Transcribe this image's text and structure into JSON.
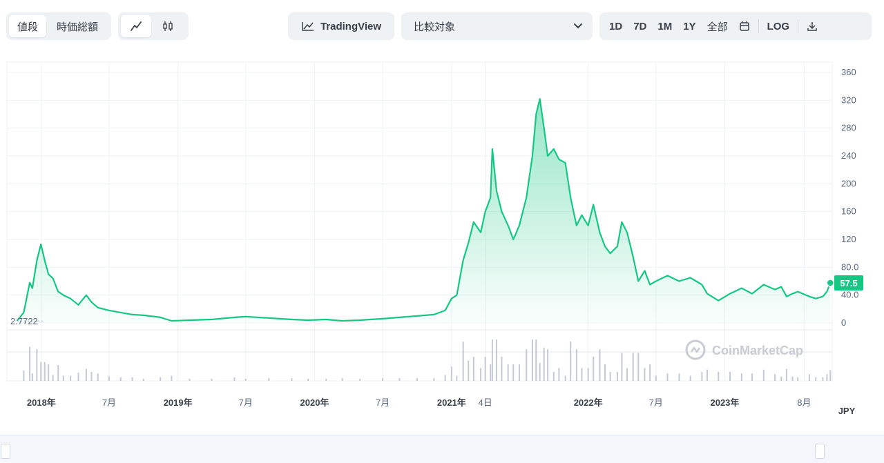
{
  "toolbar": {
    "view_tabs": [
      "値段",
      "時価総額"
    ],
    "chart_mode_icons": [
      "line-chart-icon",
      "candlestick-icon"
    ],
    "tradingview_label": "TradingView",
    "compare_placeholder": "比較対象",
    "timeframes": [
      "1D",
      "7D",
      "1M",
      "1Y",
      "全部"
    ],
    "log_label": "LOG"
  },
  "colors": {
    "line": "#16c784",
    "fill_top": "#c5efdb",
    "grid": "#eff2f5",
    "badge_bg": "#16c784"
  },
  "watermark": "CoinMarketCap",
  "currency": "JPY",
  "current_price_badge": "57.5",
  "start_price_label": "2.7722",
  "chart_data": {
    "type": "area",
    "y_ticks": [
      0,
      40,
      80,
      120,
      160,
      200,
      240,
      280,
      320,
      360
    ],
    "y_tick_labels": [
      "0",
      "40.0",
      "80.0",
      "120",
      "160",
      "200",
      "240",
      "280",
      "320",
      "360"
    ],
    "ylim": [
      0,
      360
    ],
    "xlim": [
      "2017-10-01",
      "2023-10-15"
    ],
    "x_ticks": [
      {
        "date": "2018-01-01",
        "label": "2018年",
        "major": true
      },
      {
        "date": "2018-07-01",
        "label": "7月",
        "major": false
      },
      {
        "date": "2019-01-01",
        "label": "2019年",
        "major": true
      },
      {
        "date": "2019-07-01",
        "label": "7月",
        "major": false
      },
      {
        "date": "2020-01-01",
        "label": "2020年",
        "major": true
      },
      {
        "date": "2020-07-01",
        "label": "7月",
        "major": false
      },
      {
        "date": "2021-01-01",
        "label": "2021年",
        "major": true
      },
      {
        "date": "2021-04-01",
        "label": "4日",
        "major": false
      },
      {
        "date": "2022-01-01",
        "label": "2022年",
        "major": true
      },
      {
        "date": "2022-07-01",
        "label": "7月",
        "major": false
      },
      {
        "date": "2023-01-01",
        "label": "2023年",
        "major": true
      },
      {
        "date": "2023-08-01",
        "label": "8月",
        "major": false
      }
    ],
    "series": [
      {
        "points": [
          [
            "2017-10-28",
            3
          ],
          [
            "2017-11-15",
            15
          ],
          [
            "2017-12-01",
            58
          ],
          [
            "2017-12-08",
            50
          ],
          [
            "2017-12-20",
            90
          ],
          [
            "2017-12-31",
            113
          ],
          [
            "2018-01-10",
            90
          ],
          [
            "2018-01-20",
            70
          ],
          [
            "2018-02-01",
            64
          ],
          [
            "2018-02-15",
            45
          ],
          [
            "2018-03-01",
            40
          ],
          [
            "2018-03-20",
            35
          ],
          [
            "2018-04-10",
            26
          ],
          [
            "2018-05-01",
            40
          ],
          [
            "2018-05-15",
            30
          ],
          [
            "2018-06-01",
            22
          ],
          [
            "2018-07-01",
            18
          ],
          [
            "2018-08-01",
            15
          ],
          [
            "2018-09-01",
            12
          ],
          [
            "2018-10-01",
            11
          ],
          [
            "2018-11-15",
            8
          ],
          [
            "2018-12-15",
            3
          ],
          [
            "2019-02-01",
            4
          ],
          [
            "2019-04-01",
            5
          ],
          [
            "2019-06-01",
            8
          ],
          [
            "2019-07-01",
            9
          ],
          [
            "2019-09-01",
            7
          ],
          [
            "2019-11-01",
            5
          ],
          [
            "2019-12-15",
            4
          ],
          [
            "2020-02-01",
            5
          ],
          [
            "2020-03-15",
            3
          ],
          [
            "2020-05-01",
            4
          ],
          [
            "2020-07-01",
            6
          ],
          [
            "2020-08-15",
            8
          ],
          [
            "2020-10-01",
            10
          ],
          [
            "2020-11-15",
            12
          ],
          [
            "2020-12-15",
            18
          ],
          [
            "2021-01-01",
            35
          ],
          [
            "2021-01-15",
            40
          ],
          [
            "2021-02-01",
            90
          ],
          [
            "2021-02-15",
            115
          ],
          [
            "2021-03-01",
            145
          ],
          [
            "2021-03-20",
            130
          ],
          [
            "2021-04-01",
            160
          ],
          [
            "2021-04-15",
            180
          ],
          [
            "2021-04-20",
            250
          ],
          [
            "2021-05-01",
            190
          ],
          [
            "2021-05-15",
            160
          ],
          [
            "2021-06-01",
            140
          ],
          [
            "2021-06-15",
            120
          ],
          [
            "2021-07-01",
            140
          ],
          [
            "2021-07-20",
            180
          ],
          [
            "2021-08-05",
            240
          ],
          [
            "2021-08-15",
            300
          ],
          [
            "2021-08-25",
            322
          ],
          [
            "2021-09-05",
            280
          ],
          [
            "2021-09-15",
            240
          ],
          [
            "2021-10-01",
            250
          ],
          [
            "2021-10-15",
            235
          ],
          [
            "2021-11-01",
            230
          ],
          [
            "2021-11-15",
            180
          ],
          [
            "2021-12-01",
            140
          ],
          [
            "2021-12-15",
            155
          ],
          [
            "2022-01-01",
            140
          ],
          [
            "2022-01-15",
            170
          ],
          [
            "2022-02-01",
            130
          ],
          [
            "2022-02-15",
            110
          ],
          [
            "2022-03-01",
            100
          ],
          [
            "2022-03-20",
            110
          ],
          [
            "2022-04-01",
            145
          ],
          [
            "2022-04-15",
            130
          ],
          [
            "2022-05-01",
            95
          ],
          [
            "2022-05-15",
            60
          ],
          [
            "2022-06-01",
            75
          ],
          [
            "2022-06-15",
            55
          ],
          [
            "2022-07-01",
            60
          ],
          [
            "2022-08-01",
            68
          ],
          [
            "2022-09-01",
            60
          ],
          [
            "2022-10-01",
            65
          ],
          [
            "2022-11-01",
            55
          ],
          [
            "2022-11-15",
            42
          ],
          [
            "2022-12-15",
            32
          ],
          [
            "2023-01-15",
            42
          ],
          [
            "2023-02-15",
            50
          ],
          [
            "2023-03-15",
            42
          ],
          [
            "2023-04-15",
            55
          ],
          [
            "2023-05-15",
            48
          ],
          [
            "2023-06-01",
            52
          ],
          [
            "2023-06-15",
            38
          ],
          [
            "2023-07-01",
            42
          ],
          [
            "2023-07-15",
            45
          ],
          [
            "2023-08-15",
            38
          ],
          [
            "2023-09-01",
            35
          ],
          [
            "2023-09-20",
            38
          ],
          [
            "2023-10-01",
            45
          ],
          [
            "2023-10-10",
            57.5
          ]
        ]
      }
    ]
  }
}
